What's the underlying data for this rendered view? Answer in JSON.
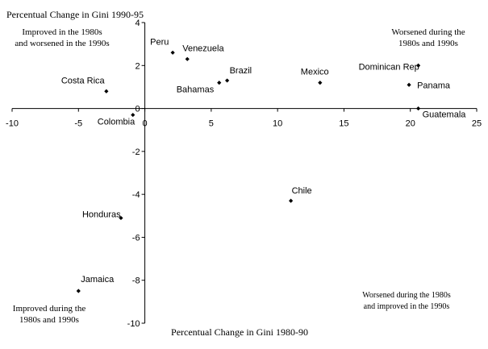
{
  "chart_data": {
    "type": "scatter",
    "ylabel": "Percentual Change in Gini 1990-95",
    "xlabel": "Percentual Change in Gini 1980-90",
    "xlim": [
      -10,
      25
    ],
    "ylim": [
      -10,
      4
    ],
    "xticks": [
      -10,
      -5,
      0,
      5,
      10,
      15,
      20,
      25
    ],
    "yticks": [
      -10,
      -8,
      -6,
      -4,
      -2,
      0,
      2,
      4
    ],
    "xtick_labels": [
      "-10",
      "-5",
      "0",
      "5",
      "10",
      "15",
      "20",
      "25"
    ],
    "ytick_labels": [
      "-10",
      "-8",
      "-6",
      "-4",
      "-2",
      "0",
      "2",
      "4"
    ],
    "points": [
      {
        "label": "Peru",
        "x": 2.1,
        "y": 2.6
      },
      {
        "label": "Venezuela",
        "x": 3.2,
        "y": 2.3
      },
      {
        "label": "Brazil",
        "x": 6.2,
        "y": 1.3
      },
      {
        "label": "Bahamas",
        "x": 5.6,
        "y": 1.2
      },
      {
        "label": "Costa Rica",
        "x": -2.9,
        "y": 0.8
      },
      {
        "label": "Colombia",
        "x": -0.9,
        "y": -0.3
      },
      {
        "label": "Mexico",
        "x": 13.2,
        "y": 1.2
      },
      {
        "label": "Dominican Rep",
        "x": 20.6,
        "y": 2.0
      },
      {
        "label": "Panama",
        "x": 19.9,
        "y": 1.1
      },
      {
        "label": "Guatemala",
        "x": 20.6,
        "y": 0.0
      },
      {
        "label": "Chile",
        "x": 11.0,
        "y": -4.3
      },
      {
        "label": "Honduras",
        "x": -1.8,
        "y": -5.1
      },
      {
        "label": "Jamaica",
        "x": -5.0,
        "y": -8.5
      }
    ],
    "quadrant_labels": [
      {
        "lines": [
          "Improved in the 1980s",
          "and worsened in the 1990s"
        ]
      },
      {
        "lines": [
          "Worsened during the",
          "1980s and 1990s"
        ]
      },
      {
        "lines": [
          "Worsened during the 1980s",
          "and improved in the 1990s"
        ]
      },
      {
        "lines": [
          "Improved during the",
          "1980s and 1990s"
        ]
      }
    ],
    "colors": {
      "axis": "#000000",
      "marker": "#000000",
      "text": "#000000"
    }
  }
}
